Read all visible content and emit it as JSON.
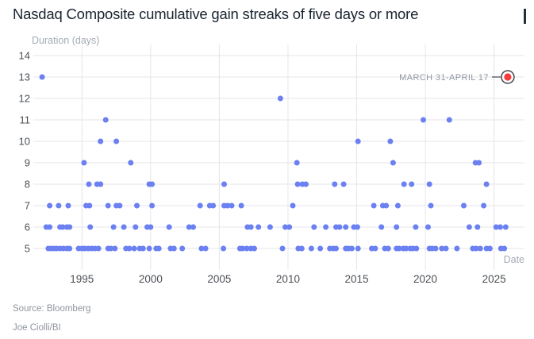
{
  "title": "Nasdaq Composite cumulative gain streaks of five days or more",
  "footer": {
    "source": "Source: Bloomberg",
    "byline": "Joe Ciolli/BI"
  },
  "chart_data": {
    "type": "scatter",
    "title": "Nasdaq Composite cumulative gain streaks of five days or more",
    "xlabel": "Date",
    "ylabel": "Duration (days)",
    "x_ticks": [
      1995,
      2000,
      2005,
      2010,
      2015,
      2020,
      2025
    ],
    "y_ticks": [
      14,
      13,
      12,
      11,
      10,
      9,
      8,
      7,
      6,
      5
    ],
    "xlim": [
      1991.4,
      2027.2
    ],
    "ylim": [
      4.5,
      14.5
    ],
    "grid": true,
    "legend": "none",
    "point_color": "#6b80f1",
    "highlight_color": "#f63c3c",
    "grid_color": "#e5e6e9",
    "tick_label_color": "#4b5056",
    "axis_label_color": "#a4aab4",
    "annotation": {
      "label": "MARCH 31-APRIL 17",
      "x": 2026.0,
      "y": 13
    },
    "points_by_duration": {
      "13": [
        1992.1
      ],
      "12": [
        2009.45
      ],
      "11": [
        1996.73,
        2019.85,
        2021.75
      ],
      "10": [
        1996.35,
        1997.5,
        2015.1,
        2017.45
      ],
      "9": [
        1995.15,
        1998.55,
        2010.65,
        2017.65,
        2023.65,
        2023.9
      ],
      "8": [
        1995.5,
        1996.1,
        1996.35,
        1999.9,
        2000.1,
        2005.35,
        2010.7,
        2011.05,
        2011.3,
        2013.4,
        2014.05,
        2018.45,
        2019.0,
        2020.3,
        2024.45
      ],
      "7": [
        1992.65,
        1993.3,
        1994.0,
        1995.3,
        1995.55,
        1996.9,
        1997.5,
        1997.75,
        1999.0,
        2000.1,
        2003.6,
        2004.3,
        2004.55,
        2005.35,
        2005.6,
        2005.9,
        2006.6,
        2010.35,
        2016.25,
        2016.9,
        2017.15,
        2018.0,
        2020.4,
        2022.8,
        2024.25
      ],
      "6": [
        1992.4,
        1992.65,
        1993.4,
        1993.6,
        1993.9,
        1994.1,
        1995.6,
        1997.3,
        1998.05,
        1998.9,
        1999.75,
        2000.0,
        2001.35,
        2002.8,
        2003.1,
        2007.05,
        2007.3,
        2007.85,
        2008.7,
        2009.8,
        2010.1,
        2011.9,
        2012.75,
        2013.5,
        2013.75,
        2014.2,
        2014.8,
        2015.05,
        2016.8,
        2017.9,
        2019.3,
        2020.2,
        2023.2,
        2023.8,
        2025.15,
        2025.45,
        2025.85
      ],
      "5": [
        1992.55,
        1992.75,
        1992.95,
        1993.15,
        1993.4,
        1993.65,
        1993.9,
        1994.1,
        1994.75,
        1995.0,
        1995.2,
        1995.45,
        1995.7,
        1995.95,
        1996.2,
        1996.9,
        1997.1,
        1997.4,
        1998.2,
        1998.45,
        1998.8,
        1999.2,
        1999.45,
        1999.9,
        2000.4,
        2000.6,
        2001.45,
        2001.7,
        2002.3,
        2003.7,
        2004.0,
        2005.3,
        2006.5,
        2006.7,
        2007.0,
        2007.3,
        2007.55,
        2009.6,
        2010.75,
        2011.0,
        2011.7,
        2012.35,
        2013.05,
        2013.3,
        2013.5,
        2014.2,
        2014.4,
        2014.65,
        2015.1,
        2016.1,
        2016.35,
        2017.05,
        2017.3,
        2017.9,
        2018.1,
        2018.4,
        2018.6,
        2018.9,
        2019.1,
        2019.35,
        2020.3,
        2020.5,
        2020.75,
        2021.2,
        2021.5,
        2022.3,
        2023.45,
        2023.7,
        2024.0,
        2024.45,
        2024.7,
        2025.5,
        2025.75
      ]
    }
  }
}
